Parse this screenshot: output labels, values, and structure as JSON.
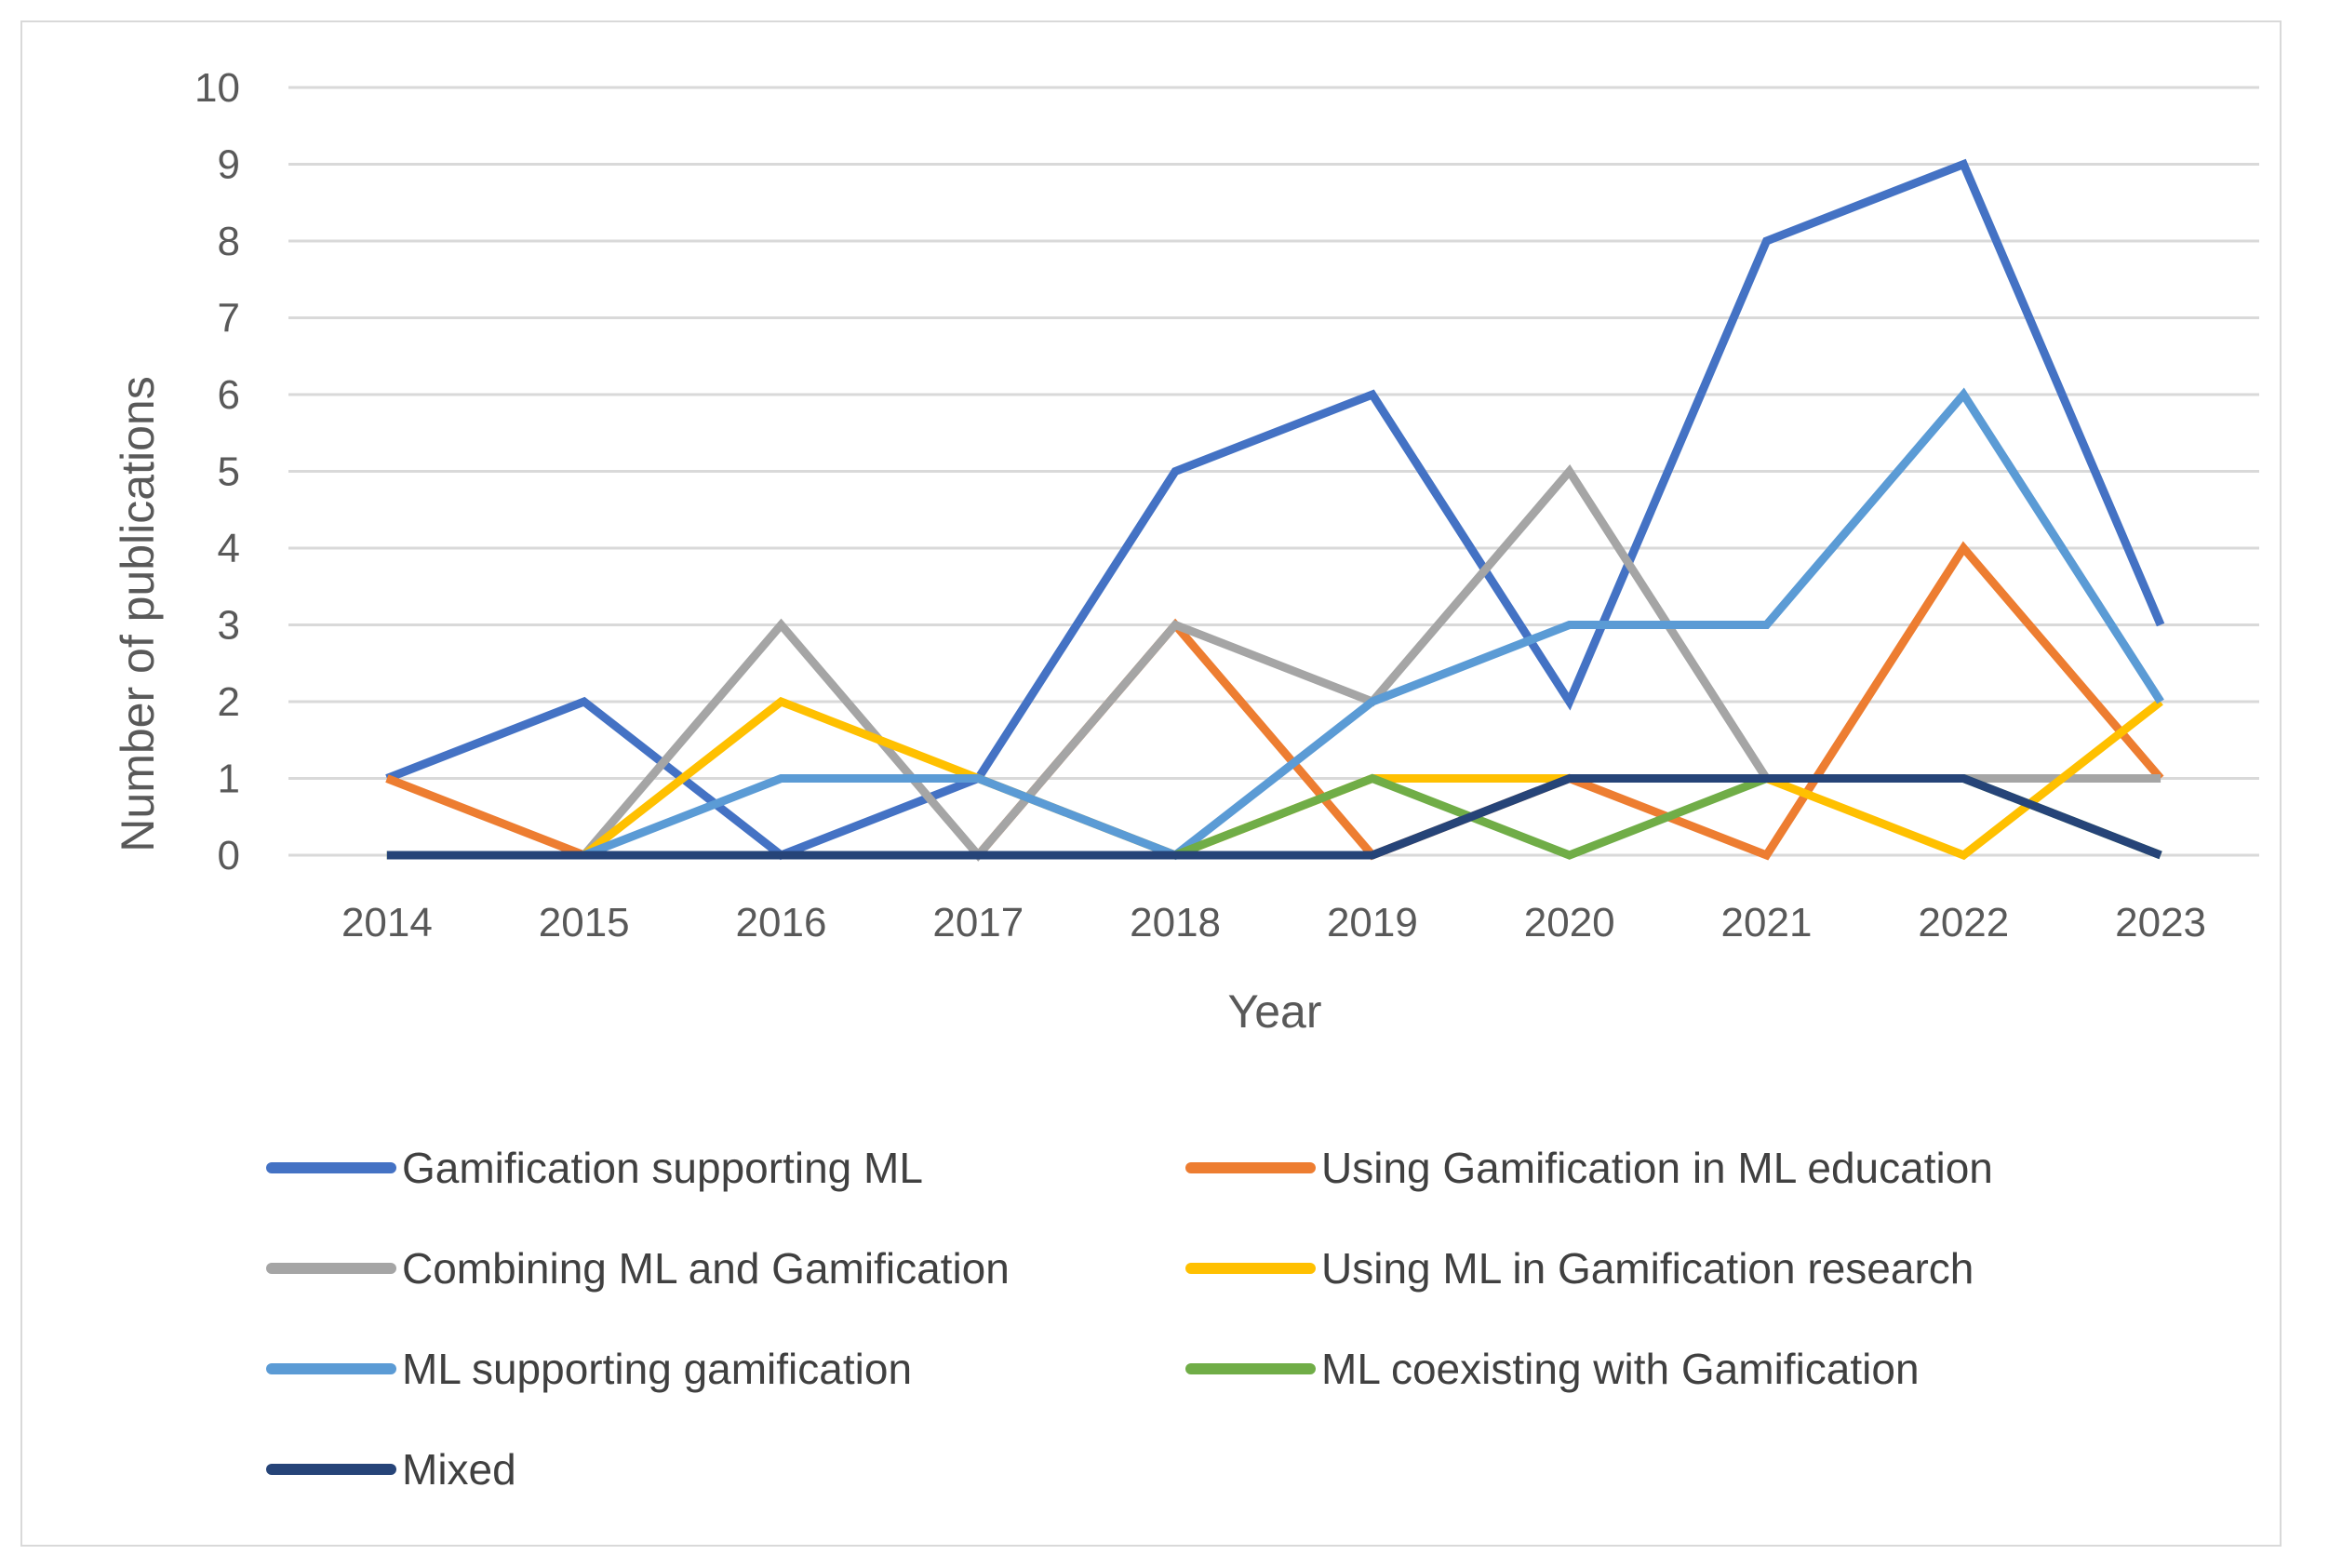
{
  "chart_data": {
    "type": "line",
    "title": "",
    "xlabel": "Year",
    "ylabel": "Number of publications",
    "ylim": [
      0,
      10
    ],
    "yticks": [
      "0",
      "1",
      "2",
      "3",
      "4",
      "5",
      "6",
      "7",
      "8",
      "9",
      "10"
    ],
    "categories": [
      "2014",
      "2015",
      "2016",
      "2017",
      "2018",
      "2019",
      "2020",
      "2021",
      "2022",
      "2023"
    ],
    "grid": true,
    "legend_position": "bottom",
    "series": [
      {
        "name": "Gamification supporting ML",
        "color": "#4472C4",
        "values": [
          1,
          2,
          0,
          1,
          5,
          6,
          2,
          8,
          9,
          3
        ]
      },
      {
        "name": "Using Gamification in ML education",
        "color": "#ED7D31",
        "values": [
          1,
          0,
          0,
          0,
          3,
          0,
          1,
          0,
          4,
          1
        ]
      },
      {
        "name": "Combining ML and Gamification",
        "color": "#A5A5A5",
        "values": [
          0,
          0,
          3,
          0,
          3,
          2,
          5,
          1,
          1,
          1
        ]
      },
      {
        "name": "Using ML in Gamification research",
        "color": "#FFC000",
        "values": [
          0,
          0,
          2,
          1,
          0,
          1,
          1,
          1,
          0,
          2
        ]
      },
      {
        "name": "ML supporting gamification",
        "color": "#5B9BD5",
        "values": [
          0,
          0,
          1,
          1,
          0,
          2,
          3,
          3,
          6,
          2
        ]
      },
      {
        "name": "ML coexisting with Gamification",
        "color": "#70AD47",
        "values": [
          0,
          0,
          0,
          0,
          0,
          1,
          0,
          1,
          1,
          0
        ]
      },
      {
        "name": "Mixed",
        "color": "#264478",
        "values": [
          0,
          0,
          0,
          0,
          0,
          0,
          1,
          1,
          1,
          0
        ]
      }
    ]
  }
}
